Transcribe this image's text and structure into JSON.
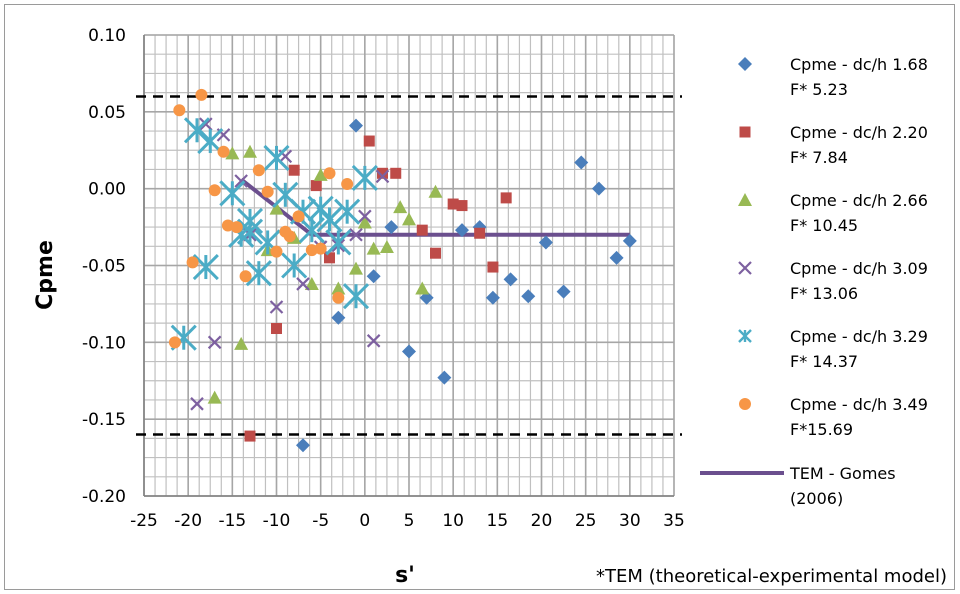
{
  "chart_data": {
    "type": "scatter",
    "title": "",
    "xlabel": "s'",
    "ylabel": "Cpme",
    "note": "*TEM (theoretical-experimental model)",
    "xlim": [
      -25,
      35
    ],
    "ylim": [
      -0.2,
      0.1
    ],
    "xticks": [
      "-25",
      "-20",
      "-15",
      "-10",
      "-5",
      "0",
      "5",
      "10",
      "15",
      "20",
      "25",
      "30",
      "35"
    ],
    "yticks": [
      "0.10",
      "0.05",
      "0.00",
      "-0.05",
      "-0.10",
      "-0.15",
      "-0.20"
    ],
    "grid": true,
    "legend_position": "right",
    "reference_lines": [
      0.06,
      -0.16
    ],
    "series": [
      {
        "name": "Cpme - dc/h 1.68",
        "name2": "F* 5.23",
        "marker": "diamond",
        "color": "#4a7ebb",
        "points": [
          [
            -1,
            0.041
          ],
          [
            -7,
            -0.167
          ],
          [
            -3,
            -0.084
          ],
          [
            1,
            -0.057
          ],
          [
            3,
            -0.025
          ],
          [
            5,
            -0.106
          ],
          [
            7,
            -0.071
          ],
          [
            9,
            -0.123
          ],
          [
            11,
            -0.027
          ],
          [
            13,
            -0.025
          ],
          [
            14.5,
            -0.071
          ],
          [
            16.5,
            -0.059
          ],
          [
            18.5,
            -0.07
          ],
          [
            20.5,
            -0.035
          ],
          [
            22.5,
            -0.067
          ],
          [
            24.5,
            0.017
          ],
          [
            26.5,
            0.0
          ],
          [
            28.5,
            -0.045
          ],
          [
            30,
            -0.034
          ]
        ]
      },
      {
        "name": "Cpme - dc/h 2.20",
        "name2": "F* 7.84",
        "marker": "square",
        "color": "#be4b48",
        "points": [
          [
            -13,
            -0.161
          ],
          [
            -10,
            -0.091
          ],
          [
            -8,
            0.012
          ],
          [
            -5.5,
            0.002
          ],
          [
            -4,
            -0.045
          ],
          [
            0.5,
            0.031
          ],
          [
            2,
            0.01
          ],
          [
            3.5,
            0.01
          ],
          [
            6.5,
            -0.027
          ],
          [
            8,
            -0.042
          ],
          [
            10,
            -0.01
          ],
          [
            11,
            -0.011
          ],
          [
            13,
            -0.029
          ],
          [
            14.5,
            -0.051
          ],
          [
            16,
            -0.006
          ]
        ]
      },
      {
        "name": "Cpme - dc/h 2.66",
        "name2": "F* 10.45",
        "marker": "triangle",
        "color": "#98b954",
        "points": [
          [
            -17,
            -0.136
          ],
          [
            -14,
            -0.101
          ],
          [
            -15,
            0.023
          ],
          [
            -13,
            0.024
          ],
          [
            -11,
            -0.04
          ],
          [
            -10,
            -0.013
          ],
          [
            -8,
            -0.032
          ],
          [
            -6,
            -0.062
          ],
          [
            -5,
            0.009
          ],
          [
            -3,
            -0.065
          ],
          [
            -1,
            -0.052
          ],
          [
            0,
            -0.022
          ],
          [
            1,
            -0.039
          ],
          [
            2.5,
            -0.038
          ],
          [
            4,
            -0.012
          ],
          [
            5,
            -0.02
          ],
          [
            6.5,
            -0.065
          ],
          [
            8,
            -0.002
          ]
        ]
      },
      {
        "name": "Cpme - dc/h 3.09",
        "name2": "F* 13.06",
        "marker": "x",
        "color": "#7d60a0",
        "points": [
          [
            -19,
            -0.14
          ],
          [
            -17,
            -0.1
          ],
          [
            -18,
            0.042
          ],
          [
            -16,
            0.035
          ],
          [
            -14,
            0.005
          ],
          [
            -13,
            -0.03
          ],
          [
            -11,
            -0.035
          ],
          [
            -10,
            -0.077
          ],
          [
            -9,
            0.021
          ],
          [
            -7,
            -0.062
          ],
          [
            -5,
            -0.038
          ],
          [
            -3,
            -0.037
          ],
          [
            -1,
            -0.03
          ],
          [
            0,
            -0.018
          ],
          [
            1,
            -0.099
          ],
          [
            2,
            0.008
          ]
        ]
      },
      {
        "name": "Cpme - dc/h 3.29",
        "name2": "F* 14.37",
        "marker": "asterisk",
        "color": "#4bacc6",
        "points": [
          [
            -20.5,
            -0.097
          ],
          [
            -19,
            0.038
          ],
          [
            -17.5,
            0.031
          ],
          [
            -18,
            -0.051
          ],
          [
            -15,
            -0.003
          ],
          [
            -14,
            -0.03
          ],
          [
            -13,
            -0.021
          ],
          [
            -12,
            -0.055
          ],
          [
            -11,
            -0.035
          ],
          [
            -10,
            0.02
          ],
          [
            -9,
            -0.004
          ],
          [
            -8,
            -0.05
          ],
          [
            -7,
            -0.015
          ],
          [
            -6,
            -0.027
          ],
          [
            -5,
            -0.013
          ],
          [
            -4,
            -0.02
          ],
          [
            -3,
            -0.035
          ],
          [
            -2,
            -0.015
          ],
          [
            -1,
            -0.07
          ],
          [
            0,
            0.007
          ],
          [
            -13,
            -0.028
          ]
        ]
      },
      {
        "name": "Cpme - dc/h 3.49",
        "name2": "F*15.69",
        "marker": "circle",
        "color": "#f79646",
        "points": [
          [
            -21.5,
            -0.1
          ],
          [
            -21,
            0.051
          ],
          [
            -18.5,
            0.061
          ],
          [
            -17,
            -0.001
          ],
          [
            -16,
            0.024
          ],
          [
            -15.5,
            -0.024
          ],
          [
            -14.5,
            -0.025
          ],
          [
            -13.5,
            -0.057
          ],
          [
            -12,
            0.012
          ],
          [
            -11,
            -0.002
          ],
          [
            -10,
            -0.041
          ],
          [
            -8.5,
            -0.031
          ],
          [
            -7.5,
            -0.018
          ],
          [
            -6,
            -0.04
          ],
          [
            -5,
            -0.039
          ],
          [
            -4,
            0.01
          ],
          [
            -3,
            -0.071
          ],
          [
            -2,
            0.003
          ],
          [
            -19.5,
            -0.048
          ],
          [
            -9,
            -0.028
          ]
        ]
      }
    ],
    "model_line": {
      "name": "TEM - Gomes",
      "name2": "(2006)",
      "color": "#6b4f8e",
      "points": [
        [
          -14,
          0.006
        ],
        [
          -6,
          -0.03
        ],
        [
          30,
          -0.03
        ]
      ]
    }
  }
}
